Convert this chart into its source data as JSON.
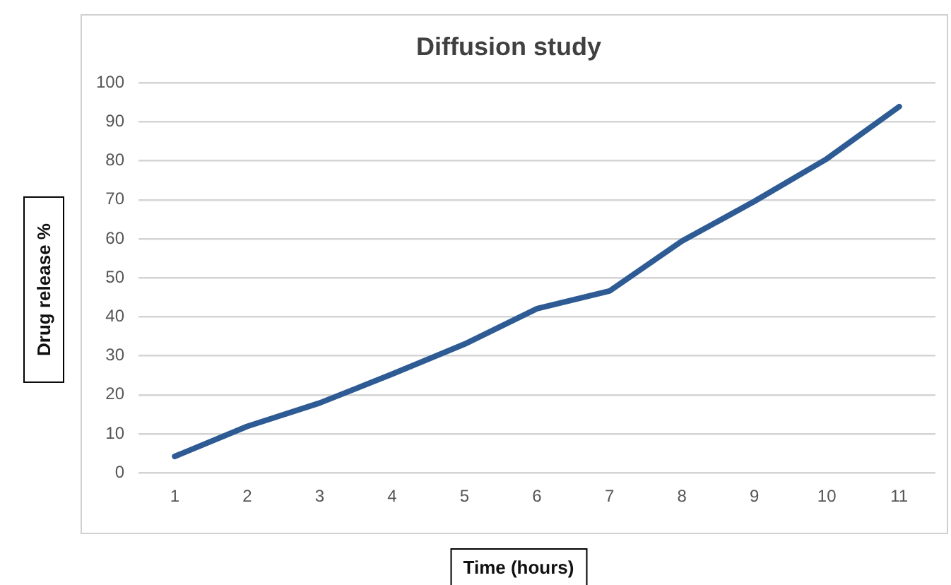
{
  "chart_data": {
    "type": "line",
    "title": "Diffusion study",
    "xlabel": "Time (hours)",
    "ylabel": "Drug release %",
    "categories": [
      "1",
      "2",
      "3",
      "4",
      "5",
      "6",
      "7",
      "8",
      "9",
      "10",
      "11"
    ],
    "series": [
      {
        "color": "#2e5b94",
        "values": [
          4.2,
          11.9,
          17.9,
          25.3,
          33,
          42.1,
          46.6,
          59.4,
          69.6,
          80.5,
          93.9
        ]
      }
    ],
    "ylim": [
      0,
      100
    ],
    "yticks": [
      0,
      10,
      20,
      30,
      40,
      50,
      60,
      70,
      80,
      90,
      100
    ],
    "grid": "y",
    "legend": false,
    "marker": "none",
    "line_style": "solid"
  }
}
